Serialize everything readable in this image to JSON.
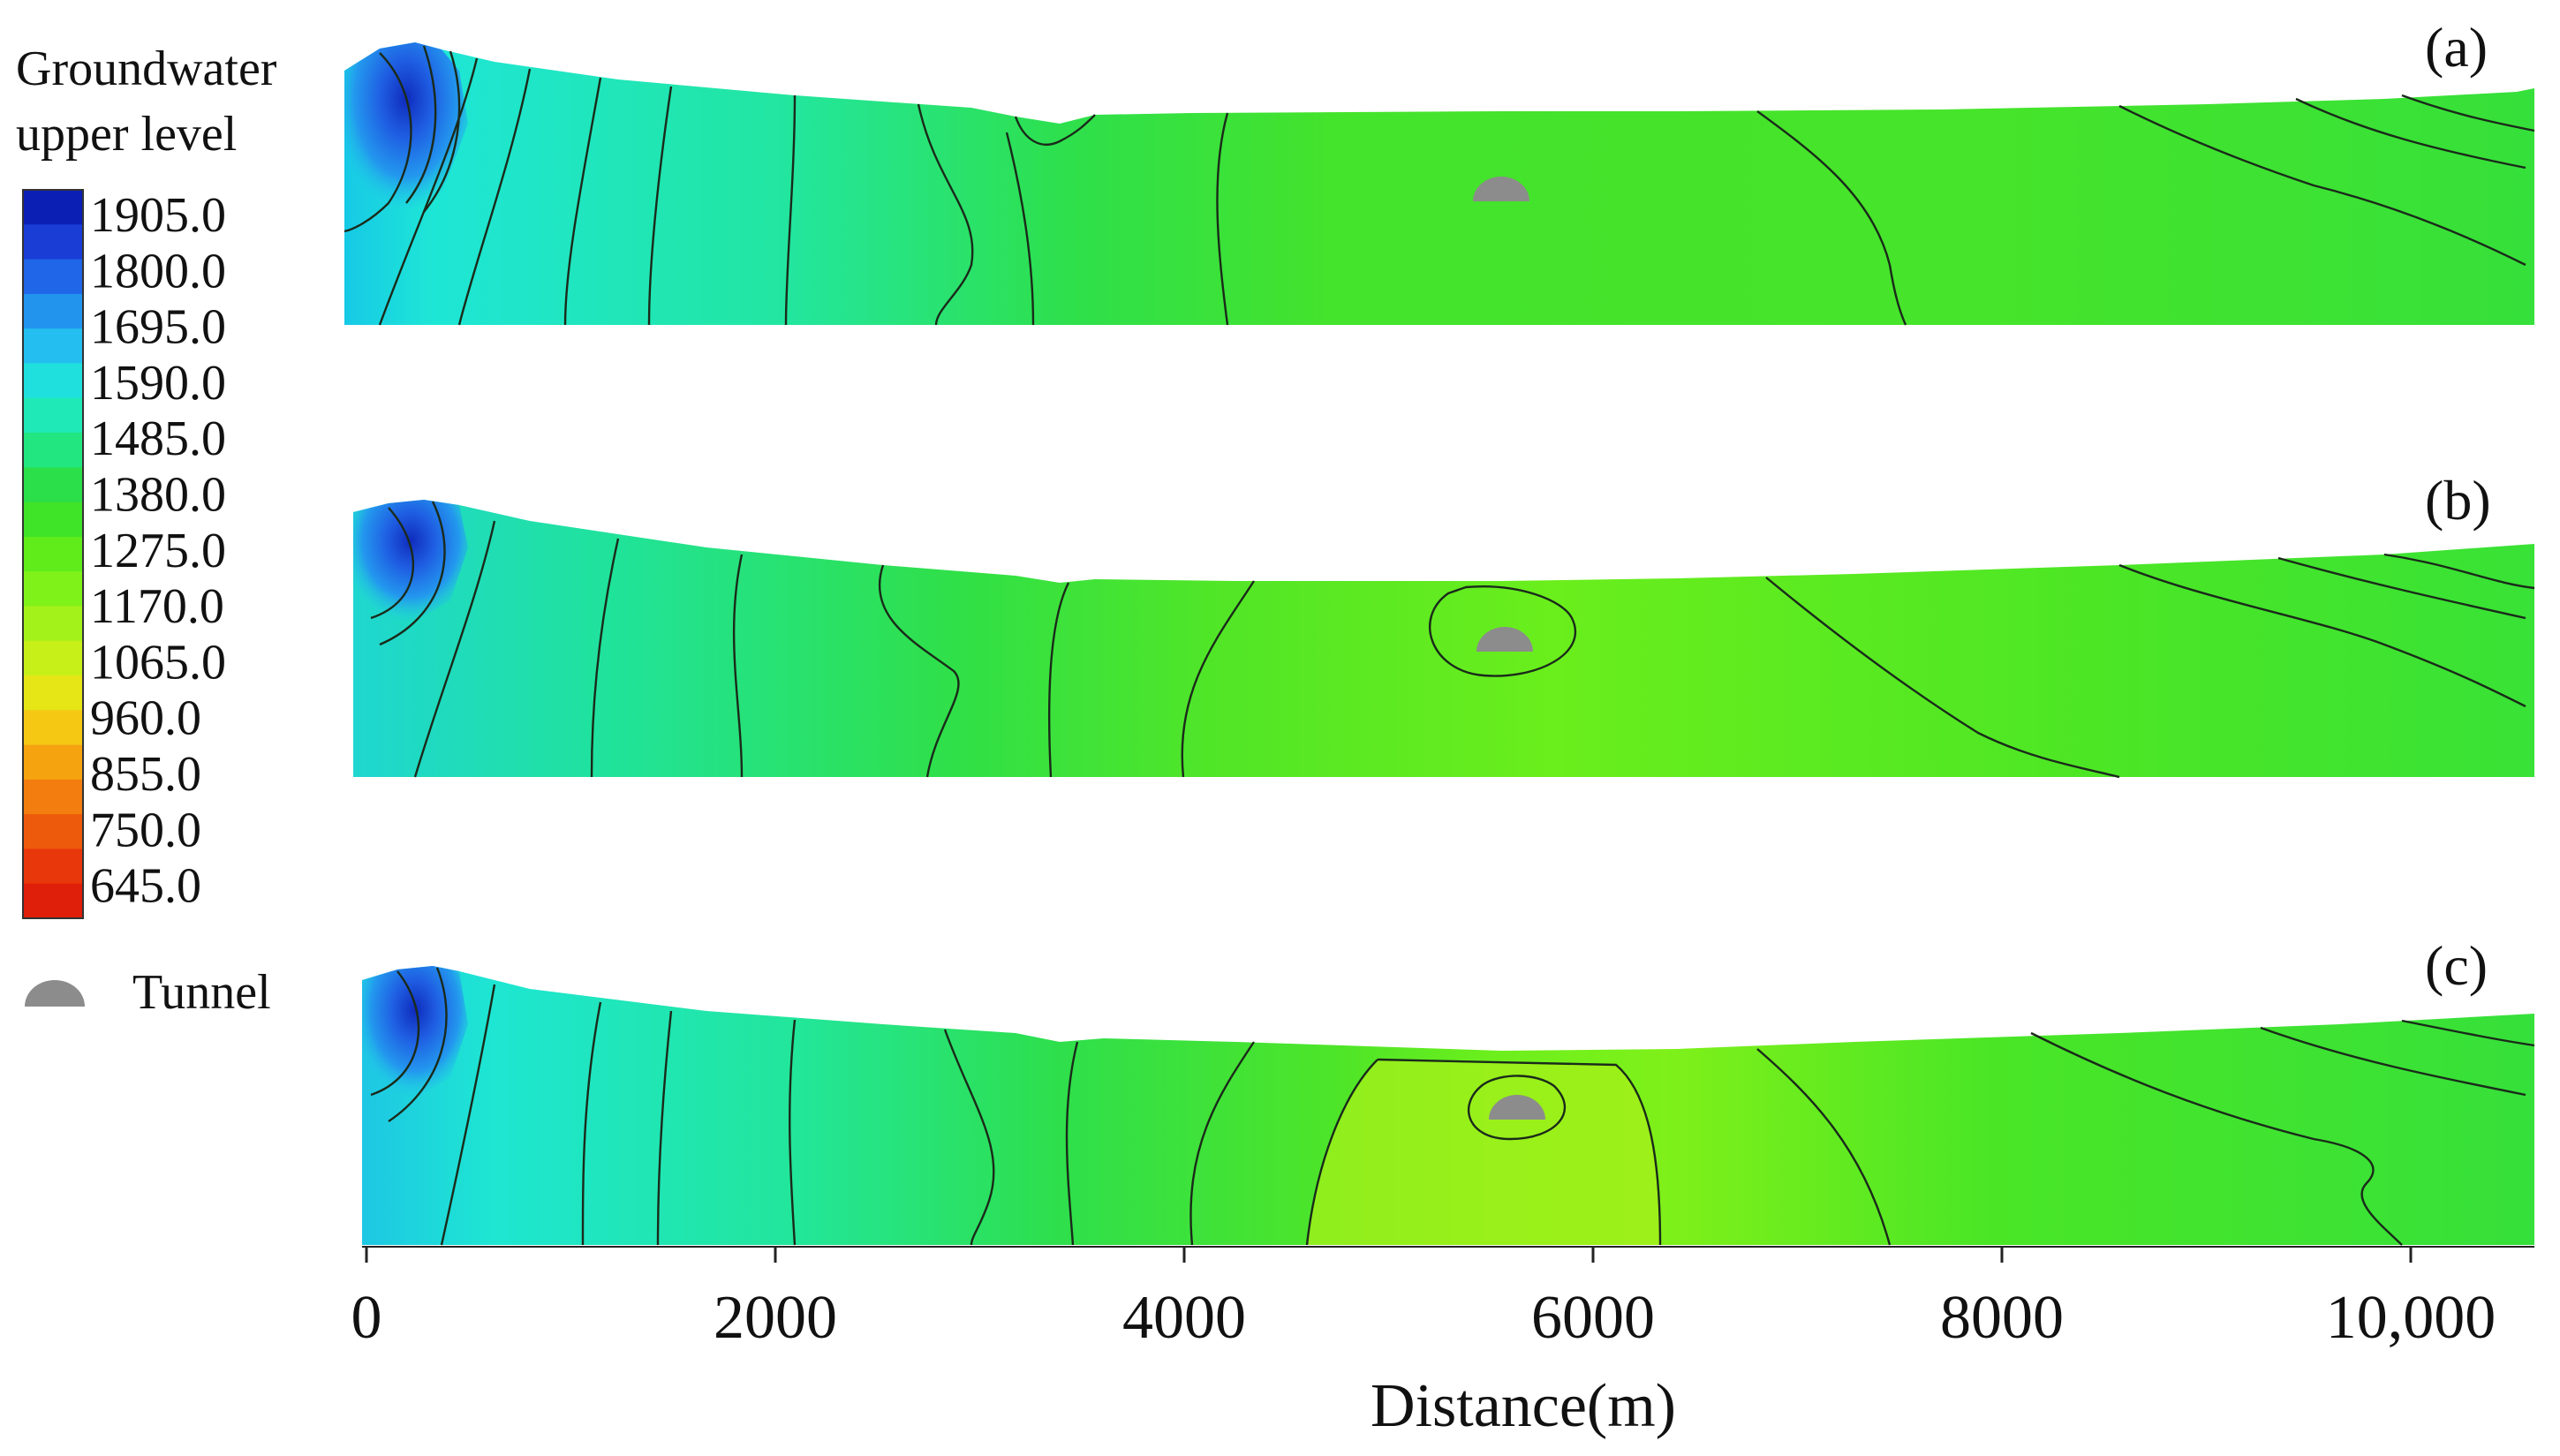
{
  "legend": {
    "title_line1": "Groundwater",
    "title_line2": "upper level",
    "levels": [
      "1905.0",
      "1800.0",
      "1695.0",
      "1590.0",
      "1485.0",
      "1380.0",
      "1275.0",
      "1170.0",
      "1065.0",
      "960.0",
      "855.0",
      "750.0",
      "645.0"
    ],
    "colors": [
      "#0b1fb5",
      "#1a3dd6",
      "#1f66e8",
      "#2294ee",
      "#24bff0",
      "#1fe0dc",
      "#1fe9b6",
      "#22e67f",
      "#2bdf4b",
      "#3fe327",
      "#5fec1a",
      "#7ff219",
      "#a3f21a",
      "#c7ef18",
      "#e6e516",
      "#f5c814",
      "#f6a310",
      "#f37d0e",
      "#ee5a0c",
      "#e8370b",
      "#e01f0a"
    ],
    "tunnel_label": "Tunnel",
    "tunnel_color": "#8c8c8c"
  },
  "panels": [
    {
      "label": "(a)",
      "id": "a"
    },
    {
      "label": "(b)",
      "id": "b"
    },
    {
      "label": "(c)",
      "id": "c"
    }
  ],
  "x_axis": {
    "label": "Distance(m)",
    "ticks": [
      "0",
      "2000",
      "4000",
      "6000",
      "8000",
      "10,000"
    ]
  },
  "colors": {
    "deep_blue": "#1c44d2",
    "cyan": "#1ee6d6",
    "green": "#39e336",
    "lime": "#6cf01c",
    "yellow_green": "#a4f218",
    "contour": "#1a2a1a"
  }
}
